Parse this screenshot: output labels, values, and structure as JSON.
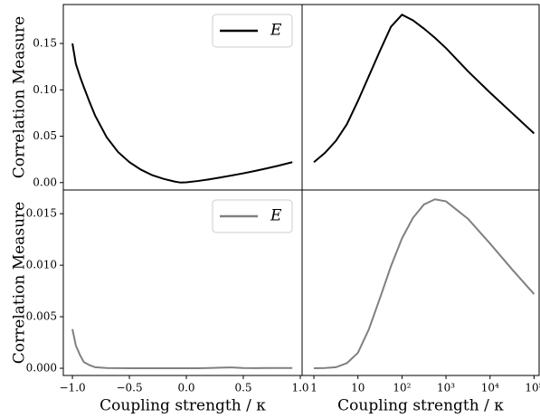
{
  "chart_data": [
    {
      "type": "line",
      "ylabel": "Correlation Measure",
      "legend": "upper right",
      "x": [
        -1.0,
        -0.97,
        -0.93,
        -0.9,
        -0.85,
        -0.8,
        -0.7,
        -0.6,
        -0.5,
        -0.4,
        -0.3,
        -0.2,
        -0.1,
        -0.05,
        0,
        0.1,
        0.2,
        0.3,
        0.4,
        0.5,
        0.6,
        0.7,
        0.8,
        0.93
      ],
      "series": [
        {
          "name": "E",
          "color": "#000000",
          "values": [
            0.15,
            0.128,
            0.113,
            0.103,
            0.087,
            0.072,
            0.049,
            0.033,
            0.022,
            0.014,
            0.008,
            0.004,
            0.001,
            0.0,
            0.0003,
            0.0017,
            0.0035,
            0.0055,
            0.0077,
            0.01,
            0.0125,
            0.0152,
            0.018,
            0.022
          ]
        }
      ],
      "xlim": [
        -1.08,
        1.016
      ],
      "ylim": [
        -0.008,
        0.192
      ],
      "yticks": [
        {
          "value": 0,
          "label": "0.00"
        },
        0.05,
        {
          "value": 0.1,
          "label": "0.10"
        },
        0.15
      ]
    },
    {
      "type": "line",
      "xscale": "log",
      "x": [
        1,
        1.778,
        3.162,
        5.623,
        10,
        17.78,
        31.62,
        56.23,
        100,
        177.8,
        316.2,
        562.3,
        1000,
        3162,
        10000,
        31623,
        100000
      ],
      "series": [
        {
          "color": "#000000",
          "values": [
            0.022,
            0.032,
            0.045,
            0.063,
            0.088,
            0.115,
            0.142,
            0.168,
            0.181,
            0.175,
            0.166,
            0.156,
            0.145,
            0.12,
            0.097,
            0.075,
            0.053
          ]
        }
      ],
      "xlim": [
        0.54,
        130000
      ],
      "ylim": [
        -0.008,
        0.192
      ]
    },
    {
      "type": "line",
      "ylabel": "Correlation Measure",
      "xlabel": "Coupling strength / κ",
      "legend": "upper right",
      "x": [
        -1.0,
        -0.97,
        -0.93,
        -0.9,
        -0.85,
        -0.8,
        -0.7,
        -0.6,
        -0.5,
        -0.4,
        -0.3,
        -0.2,
        -0.1,
        -0.05,
        0,
        0.1,
        0.2,
        0.3,
        0.4,
        0.5,
        0.6,
        0.7,
        0.8,
        0.93
      ],
      "series": [
        {
          "name": "E",
          "color": "#808080",
          "values": [
            0.0038,
            0.0022,
            0.0012,
            0.0006,
            0.0003,
            0.0001,
            3e-05,
            1e-05,
            0,
            0,
            0,
            0,
            0,
            0,
            0,
            0,
            3e-05,
            6e-05,
            8e-05,
            3e-05,
            1e-05,
            2e-05,
            3e-05,
            2e-05
          ]
        }
      ],
      "xlim": [
        -1.08,
        1.016
      ],
      "ylim": [
        -0.0007,
        0.0173
      ],
      "xticks": [
        {
          "value": -1,
          "label": "−1.0"
        },
        {
          "value": -0.5,
          "label": "−0.5"
        },
        {
          "value": 0,
          "label": "0.0"
        },
        0.5,
        {
          "value": 1,
          "label": "1.0"
        }
      ],
      "yticks": [
        {
          "value": 0,
          "label": "0.000"
        },
        0.005,
        {
          "value": 0.01,
          "label": "0.010"
        },
        0.015
      ]
    },
    {
      "type": "line",
      "xscale": "log",
      "xlabel": "Coupling strength / κ",
      "x": [
        1,
        1.778,
        3.162,
        5.623,
        10,
        17.78,
        31.62,
        56.23,
        100,
        177.8,
        316.2,
        562.3,
        1000,
        3162,
        10000,
        31623,
        100000
      ],
      "series": [
        {
          "color": "#808080",
          "values": [
            0.0,
            2e-05,
            0.0001,
            0.0005,
            0.0015,
            0.0038,
            0.0068,
            0.0099,
            0.0126,
            0.0146,
            0.0159,
            0.0164,
            0.0162,
            0.0145,
            0.0121,
            0.0096,
            0.0072
          ]
        }
      ],
      "xlim": [
        0.54,
        130000
      ],
      "ylim": [
        -0.0007,
        0.0173
      ],
      "xticks": [
        1,
        10,
        {
          "value": 100,
          "label": "10²"
        },
        {
          "value": 1000,
          "label": "10³"
        },
        {
          "value": 10000,
          "label": "10⁴"
        },
        {
          "value": 100000,
          "label": "10⁵"
        }
      ]
    }
  ]
}
